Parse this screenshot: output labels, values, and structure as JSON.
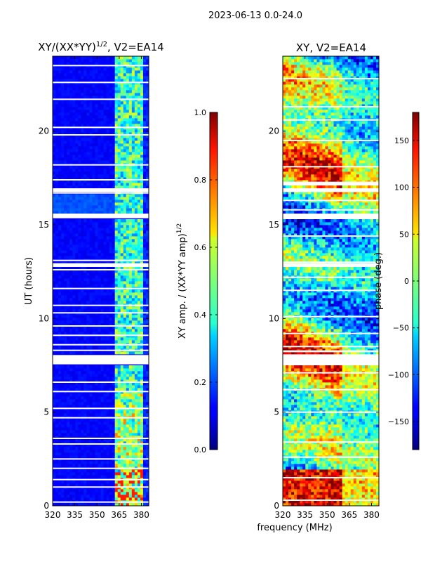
{
  "figure": {
    "suptitle": "2023-06-13 0.0-24.0"
  },
  "chart_data": [
    {
      "type": "heatmap",
      "title_base": "XY/(XX*YY)",
      "title_exponent": "1/2",
      "title_suffix": ", V2=EA14",
      "xlabel": "",
      "ylabel": "UT (hours)",
      "xlim": [
        320,
        385
      ],
      "ylim": [
        0,
        24
      ],
      "xticks": [
        320,
        335,
        350,
        365,
        380
      ],
      "yticks": [
        0,
        5,
        10,
        15,
        20
      ],
      "colorbar": {
        "label_base": "XY amp. / (XX*YY amp)",
        "label_exponent": "1/2",
        "range": [
          0.0,
          1.0
        ],
        "ticks": [
          "0.0",
          "0.2",
          "0.4",
          "0.6",
          "0.8",
          "1.0"
        ],
        "tick_values": [
          0.0,
          0.2,
          0.4,
          0.6,
          0.8,
          1.0
        ],
        "colormap": "jet"
      },
      "flagged_hours": [
        0.2,
        1.0,
        1.4,
        2.0,
        2.5,
        3.3,
        3.6,
        4.7,
        5.2,
        6.1,
        6.6,
        7.8,
        8.3,
        8.6,
        9.1,
        9.6,
        10.3,
        10.7,
        11.6,
        12.6,
        13.1,
        15.5,
        16.7,
        17.4,
        18.2,
        19.8,
        20.2,
        21.7,
        22.6,
        23.5
      ],
      "flagged_blocks": [
        [
          7.55,
          8.05
        ],
        [
          12.75,
          12.95
        ],
        [
          15.35,
          15.6
        ],
        [
          16.75,
          16.95
        ]
      ]
    },
    {
      "type": "heatmap",
      "title": "XY, V2=EA14",
      "xlabel": "frequency (MHz)",
      "ylabel": "",
      "xlim": [
        320,
        385
      ],
      "ylim": [
        0,
        24
      ],
      "xticks": [
        320,
        335,
        350,
        365,
        380
      ],
      "yticks": [
        0,
        5,
        10,
        15,
        20
      ],
      "colorbar": {
        "label": "phase (deg.)",
        "range": [
          -180,
          180
        ],
        "ticks": [
          "−150",
          "−100",
          "−50",
          "0",
          "50",
          "100",
          "150"
        ],
        "tick_values": [
          -150,
          -100,
          -50,
          0,
          50,
          100,
          150
        ],
        "colormap": "jet"
      },
      "flagged_hours": [
        0.3,
        1.5,
        2.6,
        3.4,
        5.0,
        6.2,
        7.1,
        8.5,
        9.2,
        10.1,
        11.5,
        12.2,
        13.0,
        14.4,
        15.8,
        16.3,
        18.1,
        19.5,
        20.6,
        21.3,
        22.8
      ],
      "flagged_blocks": [
        [
          7.55,
          8.05
        ],
        [
          8.2,
          8.3
        ],
        [
          12.75,
          12.95
        ],
        [
          15.35,
          15.6
        ],
        [
          16.75,
          16.95
        ],
        [
          17.1,
          17.3
        ]
      ]
    }
  ]
}
